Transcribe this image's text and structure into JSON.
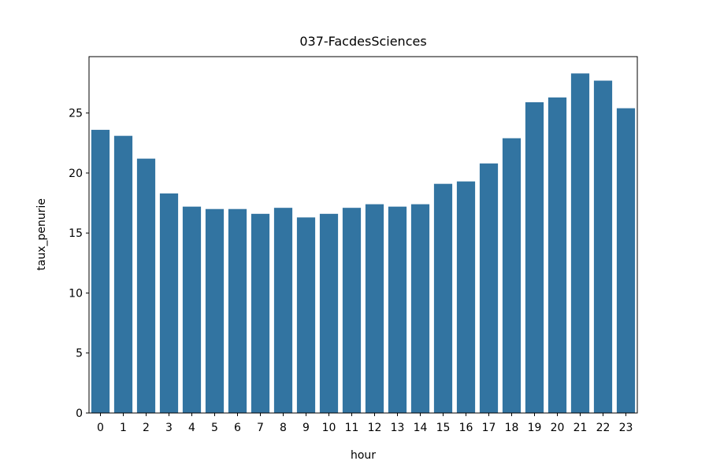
{
  "chart_data": {
    "type": "bar",
    "title": "037-FacdesSciences",
    "xlabel": "hour",
    "ylabel": "taux_penurie",
    "categories": [
      "0",
      "1",
      "2",
      "3",
      "4",
      "5",
      "6",
      "7",
      "8",
      "9",
      "10",
      "11",
      "12",
      "13",
      "14",
      "15",
      "16",
      "17",
      "18",
      "19",
      "20",
      "21",
      "22",
      "23"
    ],
    "values": [
      23.6,
      23.1,
      21.2,
      18.3,
      17.2,
      17.0,
      17.0,
      16.6,
      17.1,
      16.3,
      16.6,
      17.1,
      17.4,
      17.2,
      17.4,
      19.1,
      19.3,
      20.8,
      22.9,
      25.9,
      26.3,
      28.3,
      27.7,
      25.4
    ],
    "ylim": [
      0,
      29.7
    ],
    "yticks": [
      0,
      5,
      10,
      15,
      20,
      25
    ],
    "bar_color": "#3274a1",
    "grid": false
  }
}
